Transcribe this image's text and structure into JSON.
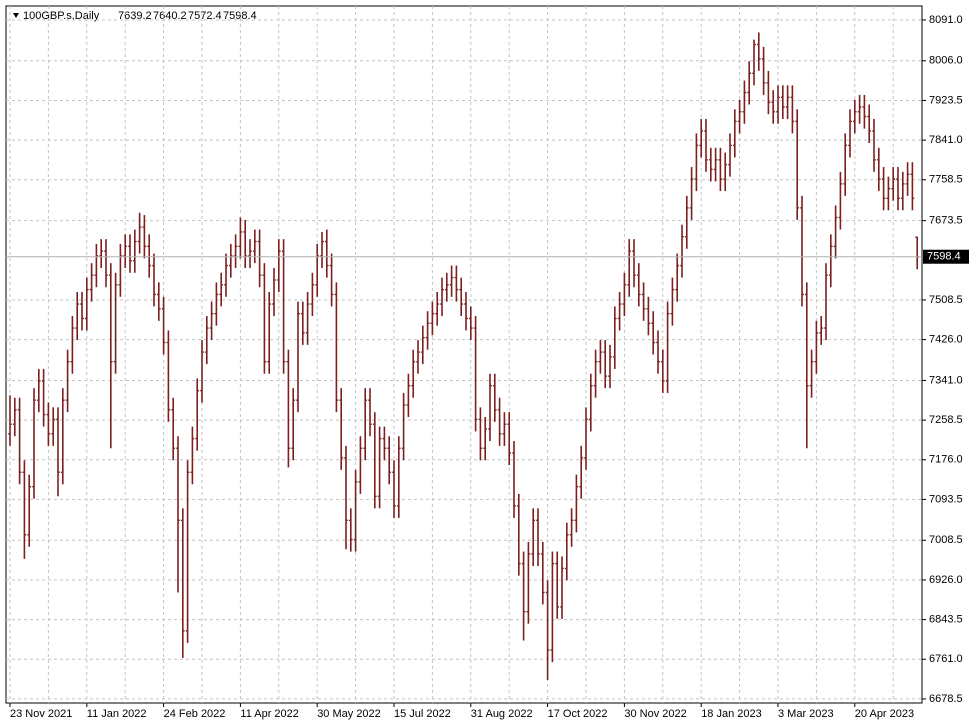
{
  "chart_data": {
    "type": "ohlc",
    "title": "100GBP.s,Daily",
    "color": "#7b1f1f",
    "grid": true,
    "ylim": [
      6670,
      8120
    ],
    "yticks": [
      {
        "value": 6678.5,
        "label": "6678.5"
      },
      {
        "value": 6761,
        "label": "6761.0"
      },
      {
        "value": 6843.5,
        "label": "6843.5"
      },
      {
        "value": 6926,
        "label": "6926.0"
      },
      {
        "value": 7008.5,
        "label": "7008.5"
      },
      {
        "value": 7093.5,
        "label": "7093.5"
      },
      {
        "value": 7176,
        "label": "7176.0"
      },
      {
        "value": 7258.5,
        "label": "7258.5"
      },
      {
        "value": 7341,
        "label": "7341.0"
      },
      {
        "value": 7426,
        "label": "7426.0"
      },
      {
        "value": 7508.5,
        "label": "7508.5"
      },
      {
        "value": 7673.5,
        "label": "7673.5"
      },
      {
        "value": 7758.5,
        "label": "7758.5"
      },
      {
        "value": 7841,
        "label": "7841.0"
      },
      {
        "value": 7923.5,
        "label": "7923.5"
      },
      {
        "value": 8006,
        "label": "8006.0"
      },
      {
        "value": 8091,
        "label": "8091.0"
      }
    ],
    "categories": [
      "23 Nov 2021",
      null,
      null,
      null,
      null,
      null,
      null,
      null,
      null,
      null,
      null,
      null,
      null,
      null,
      null,
      null,
      "11 Jan 2022",
      null,
      null,
      null,
      null,
      null,
      null,
      null,
      null,
      null,
      null,
      null,
      null,
      null,
      null,
      null,
      "24 Feb 2022",
      null,
      null,
      null,
      null,
      null,
      null,
      null,
      null,
      null,
      null,
      null,
      null,
      null,
      null,
      null,
      "11 Apr 2022",
      null,
      null,
      null,
      null,
      null,
      null,
      null,
      null,
      null,
      null,
      null,
      null,
      null,
      null,
      null,
      "30 May 2022",
      null,
      null,
      null,
      null,
      null,
      null,
      null,
      null,
      null,
      null,
      null,
      null,
      null,
      null,
      null,
      "15 Jul 2022",
      null,
      null,
      null,
      null,
      null,
      null,
      null,
      null,
      null,
      null,
      null,
      null,
      null,
      null,
      null,
      "31 Aug 2022",
      null,
      null,
      null,
      null,
      null,
      null,
      null,
      null,
      null,
      null,
      null,
      null,
      null,
      null,
      null,
      "17 Oct 2022",
      null,
      null,
      null,
      null,
      null,
      null,
      null,
      null,
      null,
      null,
      null,
      null,
      null,
      null,
      null,
      "30 Nov 2022",
      null,
      null,
      null,
      null,
      null,
      null,
      null,
      null,
      null,
      null,
      null,
      null,
      null,
      null,
      null,
      "18 Jan 2023",
      null,
      null,
      null,
      null,
      null,
      null,
      null,
      null,
      null,
      null,
      null,
      null,
      null,
      null,
      null,
      "3 Mar 2023",
      null,
      null,
      null,
      null,
      null,
      null,
      null,
      null,
      null,
      null,
      null,
      null,
      null,
      null,
      null,
      "20 Apr 2023",
      null,
      null,
      null,
      null,
      null,
      null,
      null,
      null,
      null,
      null,
      null,
      null,
      null
    ],
    "open": [
      7230,
      7250,
      7280,
      7150,
      7020,
      7120,
      7300,
      7340,
      7270,
      7230,
      7260,
      7150,
      7300,
      7380,
      7450,
      7500,
      7470,
      7530,
      7560,
      7600,
      7610,
      7560,
      7380,
      7540,
      7600,
      7620,
      7590,
      7630,
      7660,
      7620,
      7580,
      7520,
      7490,
      7420,
      7280,
      7200,
      7050,
      6820,
      7150,
      7220,
      7320,
      7400,
      7450,
      7480,
      7520,
      7540,
      7580,
      7600,
      7620,
      7650,
      7600,
      7610,
      7630,
      7560,
      7380,
      7500,
      7550,
      7610,
      7380,
      7200,
      7300,
      7480,
      7440,
      7500,
      7540,
      7600,
      7630,
      7580,
      7520,
      7300,
      7180,
      7050,
      7010,
      7130,
      7200,
      7300,
      7250,
      7100,
      7220,
      7200,
      7150,
      7080,
      7200,
      7290,
      7330,
      7380,
      7400,
      7430,
      7460,
      7480,
      7500,
      7530,
      7540,
      7555,
      7530,
      7500,
      7470,
      7450,
      7260,
      7200,
      7240,
      7330,
      7280,
      7230,
      7250,
      7190,
      7080,
      6960,
      6860,
      6980,
      7050,
      6980,
      6900,
      6780,
      6960,
      6870,
      6950,
      7020,
      7050,
      7120,
      7180,
      7260,
      7330,
      7380,
      7400,
      7350,
      7390,
      7470,
      7500,
      7540,
      7610,
      7560,
      7520,
      7490,
      7460,
      7420,
      7380,
      7340,
      7480,
      7530,
      7580,
      7640,
      7700,
      7760,
      7830,
      7860,
      7800,
      7780,
      7800,
      7760,
      7790,
      7830,
      7880,
      7900,
      7940,
      7980,
      8040,
      8010,
      7960,
      7920,
      7900,
      7930,
      7910,
      7930,
      7880,
      7700,
      7520,
      7330,
      7380,
      7440,
      7450,
      7560,
      7620,
      7680,
      7750,
      7830,
      7880,
      7900,
      7910,
      7890,
      7860,
      7800,
      7760,
      7720,
      7740,
      7760,
      7720,
      7750,
      7770,
      7639.2
    ],
    "high": [
      7310,
      7305,
      7305,
      7175,
      7145,
      7325,
      7365,
      7365,
      7295,
      7285,
      7285,
      7325,
      7405,
      7475,
      7525,
      7525,
      7555,
      7585,
      7625,
      7635,
      7635,
      7585,
      7565,
      7625,
      7645,
      7645,
      7655,
      7690,
      7685,
      7645,
      7605,
      7545,
      7515,
      7445,
      7305,
      7225,
      7075,
      7175,
      7245,
      7345,
      7425,
      7475,
      7505,
      7545,
      7565,
      7605,
      7625,
      7645,
      7680,
      7675,
      7635,
      7655,
      7655,
      7585,
      7525,
      7575,
      7635,
      7635,
      7405,
      7325,
      7505,
      7505,
      7525,
      7565,
      7625,
      7650,
      7655,
      7605,
      7545,
      7325,
      7205,
      7075,
      7155,
      7225,
      7325,
      7325,
      7275,
      7245,
      7245,
      7225,
      7175,
      7225,
      7315,
      7355,
      7405,
      7425,
      7455,
      7485,
      7505,
      7525,
      7555,
      7565,
      7580,
      7580,
      7555,
      7525,
      7495,
      7475,
      7285,
      7265,
      7355,
      7355,
      7305,
      7275,
      7275,
      7215,
      7105,
      6985,
      7005,
      7075,
      7075,
      7005,
      6925,
      6985,
      6985,
      6975,
      7045,
      7075,
      7145,
      7205,
      7285,
      7355,
      7405,
      7425,
      7425,
      7415,
      7495,
      7525,
      7565,
      7635,
      7635,
      7585,
      7545,
      7515,
      7485,
      7445,
      7405,
      7505,
      7555,
      7605,
      7665,
      7725,
      7785,
      7855,
      7885,
      7885,
      7825,
      7825,
      7825,
      7815,
      7855,
      7905,
      7925,
      7965,
      8005,
      8050,
      8065,
      8035,
      7985,
      7945,
      7955,
      7955,
      7955,
      7955,
      7905,
      7725,
      7545,
      7405,
      7465,
      7475,
      7585,
      7645,
      7705,
      7775,
      7855,
      7905,
      7925,
      7935,
      7935,
      7915,
      7885,
      7825,
      7785,
      7765,
      7785,
      7785,
      7775,
      7795,
      7795,
      7640.2
    ],
    "low": [
      7205,
      7225,
      7125,
      6970,
      6995,
      7095,
      7275,
      7245,
      7205,
      7205,
      7100,
      7125,
      7275,
      7355,
      7425,
      7445,
      7445,
      7505,
      7535,
      7575,
      7535,
      7200,
      7355,
      7515,
      7575,
      7565,
      7565,
      7605,
      7595,
      7555,
      7495,
      7465,
      7395,
      7255,
      7175,
      6900,
      6764,
      6795,
      7125,
      7195,
      7295,
      7375,
      7425,
      7455,
      7495,
      7515,
      7555,
      7575,
      7595,
      7575,
      7575,
      7585,
      7535,
      7355,
      7355,
      7475,
      7525,
      7355,
      7160,
      7175,
      7275,
      7415,
      7415,
      7475,
      7515,
      7575,
      7555,
      7495,
      7275,
      7155,
      6990,
      6985,
      6985,
      7105,
      7175,
      7225,
      7075,
      7075,
      7175,
      7125,
      7055,
      7055,
      7175,
      7265,
      7305,
      7355,
      7375,
      7405,
      7435,
      7455,
      7475,
      7505,
      7515,
      7505,
      7475,
      7445,
      7425,
      7235,
      7175,
      7175,
      7215,
      7255,
      7205,
      7205,
      7165,
      7055,
      6935,
      6800,
      6835,
      6955,
      6955,
      6875,
      6718,
      6755,
      6845,
      6845,
      6925,
      6995,
      7025,
      7095,
      7155,
      7235,
      7305,
      7355,
      7325,
      7325,
      7365,
      7445,
      7475,
      7515,
      7535,
      7495,
      7465,
      7435,
      7395,
      7355,
      7315,
      7315,
      7455,
      7505,
      7555,
      7615,
      7675,
      7735,
      7805,
      7775,
      7755,
      7755,
      7735,
      7735,
      7765,
      7805,
      7855,
      7875,
      7915,
      7955,
      7985,
      7935,
      7895,
      7875,
      7875,
      7885,
      7885,
      7855,
      7675,
      7495,
      7200,
      7305,
      7355,
      7415,
      7425,
      7535,
      7595,
      7655,
      7725,
      7805,
      7855,
      7875,
      7865,
      7835,
      7775,
      7735,
      7695,
      7695,
      7715,
      7695,
      7695,
      7725,
      7695,
      7572.4
    ],
    "close": [
      7250,
      7280,
      7150,
      7020,
      7120,
      7300,
      7340,
      7270,
      7230,
      7260,
      7150,
      7300,
      7380,
      7450,
      7500,
      7470,
      7530,
      7560,
      7600,
      7610,
      7560,
      7380,
      7540,
      7600,
      7620,
      7590,
      7630,
      7660,
      7620,
      7580,
      7520,
      7490,
      7420,
      7280,
      7200,
      7050,
      6820,
      7150,
      7220,
      7320,
      7400,
      7450,
      7480,
      7520,
      7540,
      7580,
      7600,
      7620,
      7650,
      7600,
      7610,
      7630,
      7560,
      7380,
      7500,
      7550,
      7610,
      7380,
      7200,
      7300,
      7480,
      7440,
      7500,
      7540,
      7600,
      7630,
      7580,
      7520,
      7300,
      7180,
      7050,
      7010,
      7130,
      7200,
      7300,
      7250,
      7100,
      7220,
      7200,
      7150,
      7080,
      7200,
      7290,
      7330,
      7380,
      7400,
      7430,
      7460,
      7480,
      7500,
      7530,
      7540,
      7555,
      7530,
      7500,
      7470,
      7450,
      7260,
      7200,
      7240,
      7330,
      7280,
      7230,
      7250,
      7190,
      7080,
      6960,
      6860,
      6980,
      7050,
      6980,
      6900,
      6780,
      6960,
      6870,
      6950,
      7020,
      7050,
      7120,
      7180,
      7260,
      7330,
      7380,
      7400,
      7350,
      7390,
      7470,
      7500,
      7540,
      7610,
      7560,
      7520,
      7490,
      7460,
      7420,
      7380,
      7340,
      7480,
      7530,
      7580,
      7640,
      7700,
      7760,
      7830,
      7860,
      7800,
      7780,
      7800,
      7760,
      7790,
      7830,
      7880,
      7900,
      7940,
      7980,
      8040,
      8010,
      7960,
      7920,
      7900,
      7930,
      7910,
      7930,
      7880,
      7700,
      7520,
      7330,
      7380,
      7440,
      7450,
      7560,
      7620,
      7680,
      7750,
      7830,
      7880,
      7900,
      7910,
      7890,
      7860,
      7800,
      7760,
      7720,
      7740,
      7760,
      7720,
      7750,
      7770,
      7720,
      7598.4
    ]
  }
}
